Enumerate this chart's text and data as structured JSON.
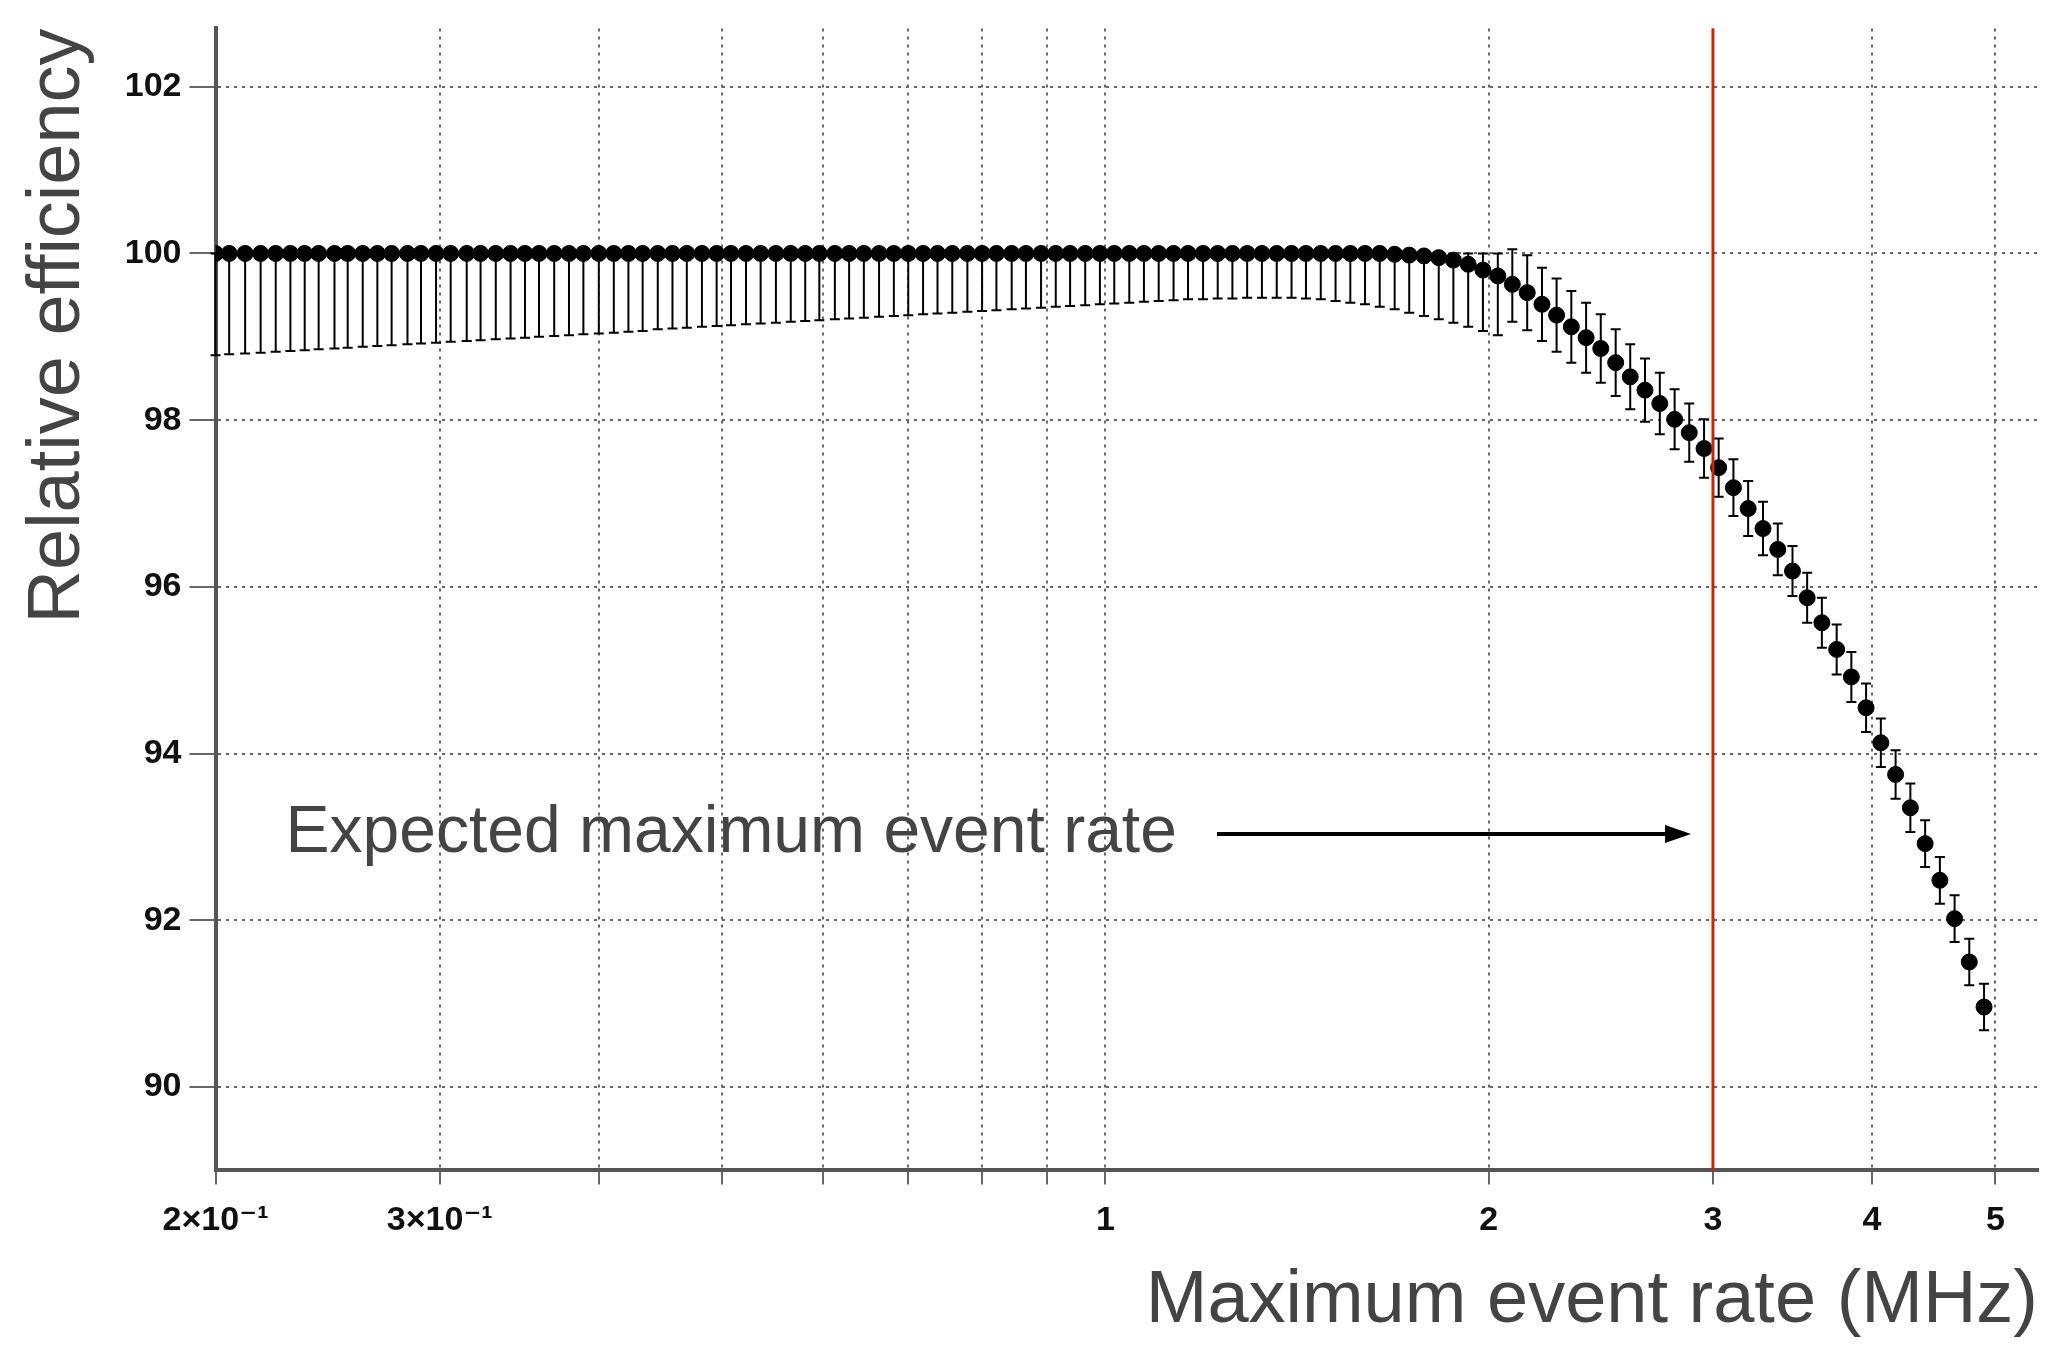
{
  "chart_data": {
    "type": "scatter",
    "xlabel": "Maximum event rate (MHz)",
    "ylabel": "Relative efficiency",
    "log": "x",
    "grid": true,
    "legend": false,
    "marker": "circle",
    "xlim": [
      0.2,
      5.4
    ],
    "ylim": [
      89,
      102.7
    ],
    "xticks": [
      {
        "value": 0.2,
        "label": "2×10⁻¹"
      },
      {
        "value": 0.3,
        "label": "3×10⁻¹"
      },
      {
        "value": 0.4,
        "label": null
      },
      {
        "value": 0.5,
        "label": null
      },
      {
        "value": 0.6,
        "label": null
      },
      {
        "value": 0.7,
        "label": null
      },
      {
        "value": 0.8,
        "label": null
      },
      {
        "value": 0.9,
        "label": null
      },
      1,
      2,
      3,
      4,
      5
    ],
    "yticks": [
      90,
      92,
      94,
      96,
      98,
      100,
      102
    ],
    "ref_lines": [
      {
        "axis": "x",
        "value": 3,
        "color": "#c8250f"
      }
    ],
    "annotations": [
      "Expected maximum event rate"
    ],
    "series": [
      {
        "color": "#000000",
        "x": [
          0.2,
          0.205,
          0.211,
          0.217,
          0.223,
          0.229,
          0.235,
          0.241,
          0.248,
          0.254,
          0.261,
          0.268,
          0.275,
          0.283,
          0.29,
          0.298,
          0.306,
          0.315,
          0.323,
          0.332,
          0.341,
          0.35,
          0.359,
          0.369,
          0.379,
          0.389,
          0.4,
          0.411,
          0.422,
          0.433,
          0.445,
          0.457,
          0.469,
          0.482,
          0.495,
          0.508,
          0.522,
          0.536,
          0.551,
          0.566,
          0.581,
          0.596,
          0.613,
          0.629,
          0.646,
          0.664,
          0.682,
          0.7,
          0.719,
          0.738,
          0.758,
          0.779,
          0.8,
          0.821,
          0.844,
          0.866,
          0.89,
          0.914,
          0.938,
          0.964,
          0.99,
          1.016,
          1.044,
          1.072,
          1.101,
          1.131,
          1.161,
          1.193,
          1.225,
          1.258,
          1.292,
          1.327,
          1.363,
          1.4,
          1.437,
          1.476,
          1.516,
          1.557,
          1.599,
          1.642,
          1.687,
          1.732,
          1.779,
          1.827,
          1.876,
          1.927,
          1.979,
          2.033,
          2.087,
          2.144,
          2.202,
          2.261,
          2.322,
          2.385,
          2.449,
          2.516,
          2.583,
          2.653,
          2.725,
          2.799,
          2.874,
          2.952,
          3.031,
          3.113,
          3.197,
          3.284,
          3.373,
          3.464,
          3.557,
          3.653,
          3.752,
          3.853,
          3.957,
          4.064,
          4.174,
          4.287,
          4.403,
          4.522,
          4.644,
          4.769,
          4.898
        ],
        "values": [
          100,
          100,
          100,
          100,
          100,
          100,
          100,
          100,
          100,
          100,
          100,
          100,
          100,
          100,
          100,
          100,
          100,
          100,
          100,
          100,
          100,
          100,
          100,
          100,
          100,
          100,
          100,
          100,
          100,
          100,
          100,
          100,
          100,
          100,
          100,
          100,
          100,
          100,
          100,
          100,
          100,
          100,
          100,
          100,
          100,
          100,
          100,
          100,
          100,
          100,
          100,
          100,
          100,
          100,
          100,
          100,
          100,
          100,
          100,
          100,
          100,
          100,
          100,
          100,
          100,
          100,
          100,
          100,
          100,
          100,
          100,
          100,
          100,
          100,
          100,
          100,
          100,
          100,
          100,
          100,
          99.99,
          99.98,
          99.97,
          99.95,
          99.92,
          99.87,
          99.8,
          99.73,
          99.63,
          99.53,
          99.39,
          99.26,
          99.12,
          98.99,
          98.86,
          98.69,
          98.52,
          98.36,
          98.2,
          98.01,
          97.85,
          97.66,
          97.43,
          97.19,
          96.94,
          96.7,
          96.45,
          96.19,
          95.87,
          95.57,
          95.25,
          94.92,
          94.55,
          94.13,
          93.75,
          93.35,
          92.92,
          92.48,
          92.02,
          91.5,
          90.96
        ],
        "errors": [
          [
            98.78,
            100
          ],
          [
            98.79,
            100
          ],
          [
            98.8,
            100
          ],
          [
            98.81,
            100
          ],
          [
            98.82,
            100
          ],
          [
            98.83,
            100
          ],
          [
            98.84,
            100
          ],
          [
            98.85,
            100
          ],
          [
            98.86,
            100
          ],
          [
            98.87,
            100
          ],
          [
            98.88,
            100
          ],
          [
            98.89,
            100
          ],
          [
            98.9,
            100
          ],
          [
            98.91,
            100
          ],
          [
            98.92,
            100
          ],
          [
            98.93,
            100
          ],
          [
            98.94,
            100
          ],
          [
            98.95,
            100
          ],
          [
            98.96,
            100
          ],
          [
            98.97,
            100
          ],
          [
            98.98,
            100
          ],
          [
            98.99,
            100
          ],
          [
            99,
            100
          ],
          [
            99.01,
            100
          ],
          [
            99.02,
            100
          ],
          [
            99.03,
            100
          ],
          [
            99.04,
            100
          ],
          [
            99.05,
            100
          ],
          [
            99.06,
            100
          ],
          [
            99.07,
            100
          ],
          [
            99.09,
            100
          ],
          [
            99.1,
            100
          ],
          [
            99.11,
            100
          ],
          [
            99.12,
            100
          ],
          [
            99.13,
            100
          ],
          [
            99.14,
            100
          ],
          [
            99.15,
            100
          ],
          [
            99.16,
            100
          ],
          [
            99.17,
            100
          ],
          [
            99.18,
            100
          ],
          [
            99.19,
            100
          ],
          [
            99.2,
            100
          ],
          [
            99.21,
            100
          ],
          [
            99.22,
            100
          ],
          [
            99.23,
            100
          ],
          [
            99.24,
            100
          ],
          [
            99.25,
            100
          ],
          [
            99.26,
            100
          ],
          [
            99.27,
            100
          ],
          [
            99.28,
            100
          ],
          [
            99.29,
            100
          ],
          [
            99.3,
            100
          ],
          [
            99.31,
            100
          ],
          [
            99.32,
            100
          ],
          [
            99.33,
            100
          ],
          [
            99.34,
            100
          ],
          [
            99.35,
            100
          ],
          [
            99.36,
            100
          ],
          [
            99.37,
            100
          ],
          [
            99.38,
            100
          ],
          [
            99.39,
            100
          ],
          [
            99.4,
            100
          ],
          [
            99.41,
            100
          ],
          [
            99.42,
            100
          ],
          [
            99.43,
            100
          ],
          [
            99.44,
            100
          ],
          [
            99.45,
            100
          ],
          [
            99.45,
            100
          ],
          [
            99.46,
            100
          ],
          [
            99.46,
            100
          ],
          [
            99.47,
            100
          ],
          [
            99.47,
            100
          ],
          [
            99.47,
            100
          ],
          [
            99.47,
            100
          ],
          [
            99.46,
            100
          ],
          [
            99.45,
            100
          ],
          [
            99.43,
            100
          ],
          [
            99.41,
            100
          ],
          [
            99.39,
            100
          ],
          [
            99.36,
            100
          ],
          [
            99.33,
            100
          ],
          [
            99.29,
            100
          ],
          [
            99.25,
            100
          ],
          [
            99.21,
            100
          ],
          [
            99.17,
            100
          ],
          [
            99.12,
            100
          ],
          [
            99.07,
            100
          ],
          [
            99.02,
            100
          ],
          [
            99.18,
            100.05
          ],
          [
            99.08,
            99.98
          ],
          [
            98.95,
            99.83
          ],
          [
            98.82,
            99.7
          ],
          [
            98.69,
            99.55
          ],
          [
            98.57,
            99.41
          ],
          [
            98.45,
            99.27
          ],
          [
            98.29,
            99.09
          ],
          [
            98.13,
            98.91
          ],
          [
            97.98,
            98.74
          ],
          [
            97.83,
            98.57
          ],
          [
            97.65,
            98.37
          ],
          [
            97.5,
            98.2
          ],
          [
            97.31,
            98.01
          ],
          [
            97.08,
            97.78
          ],
          [
            96.85,
            97.53
          ],
          [
            96.61,
            97.27
          ],
          [
            96.38,
            97.02
          ],
          [
            96.14,
            96.76
          ],
          [
            95.89,
            96.49
          ],
          [
            95.57,
            96.17
          ],
          [
            95.27,
            95.87
          ],
          [
            94.95,
            95.55
          ],
          [
            94.62,
            95.22
          ],
          [
            94.26,
            94.84
          ],
          [
            93.84,
            94.42
          ],
          [
            93.46,
            94.04
          ],
          [
            93.06,
            93.64
          ],
          [
            92.64,
            93.2
          ],
          [
            92.2,
            92.76
          ],
          [
            91.74,
            92.3
          ],
          [
            91.22,
            91.78
          ],
          [
            90.68,
            91.24
          ]
        ]
      }
    ]
  }
}
